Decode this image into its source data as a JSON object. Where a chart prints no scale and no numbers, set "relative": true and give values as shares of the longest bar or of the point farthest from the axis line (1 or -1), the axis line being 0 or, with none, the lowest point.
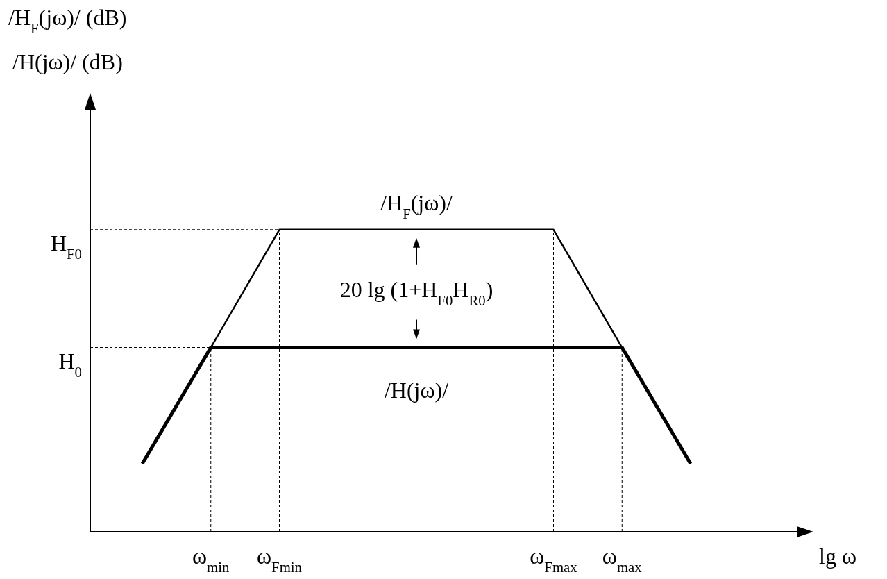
{
  "chart_data": {
    "type": "line",
    "relative": true,
    "xlabel": "lg ω",
    "categories": [
      null,
      "ω$_{min}$",
      "ω$_{Fmin}$",
      null,
      null,
      null,
      "ω$_{Fmax}$",
      "ω$_{max}$",
      null
    ],
    "series": [
      {
        "name": "/H$_{F}$(jω)/",
        "color": "#000000",
        "values": [
          null,
          0.61,
          1,
          1,
          1,
          1,
          1,
          0.61,
          null
        ]
      },
      {
        "name": "/H(jω)/",
        "color": "#000000",
        "values": [
          0.225,
          0.61,
          0.61,
          0.61,
          0.61,
          0.61,
          0.61,
          0.61,
          0.225
        ]
      }
    ],
    "annotations": [
      "H$_{F0}$",
      "H$_{0}$",
      "20 lg (1+H$_{F0}$H$_{R0}$)",
      "/H$_{F}$(jω)/ (dB)",
      "/H(jω)/ (dB)"
    ],
    "marker": "none",
    "line_style": "solid",
    "grid": "x"
  }
}
